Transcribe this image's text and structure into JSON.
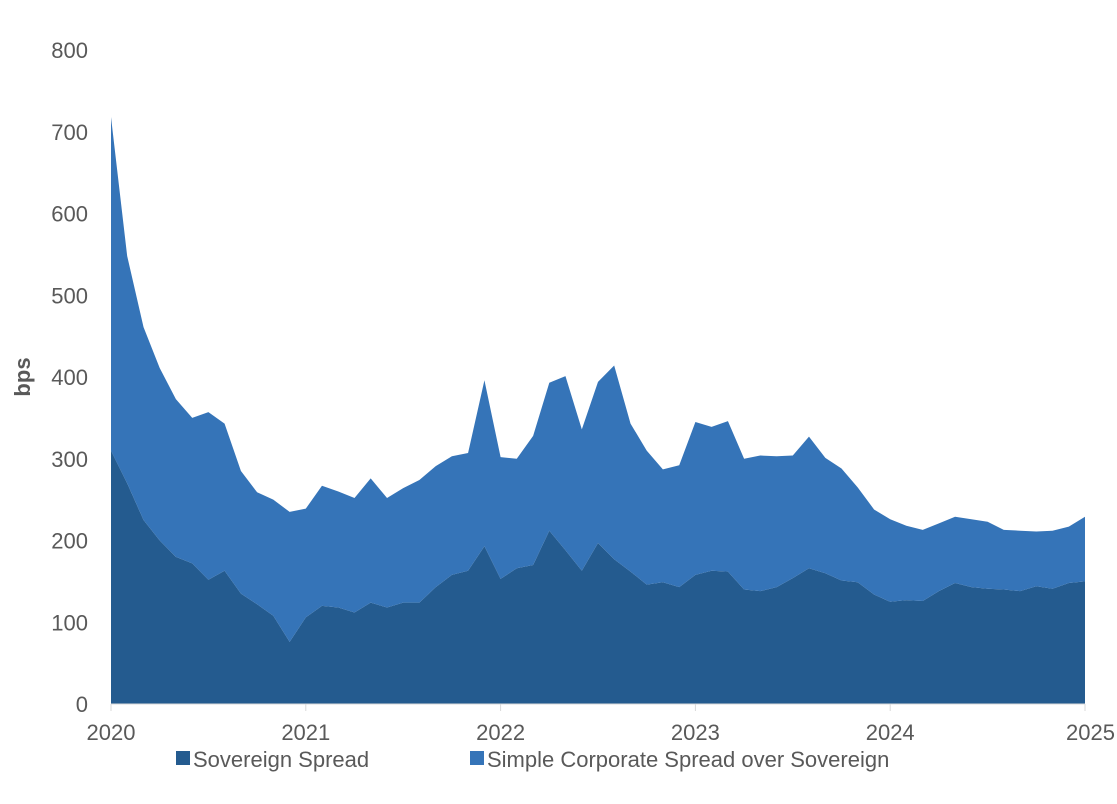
{
  "chart_data": {
    "type": "area",
    "stacked": true,
    "ylabel": "bps",
    "xlabel": "",
    "ylim": [
      0,
      800
    ],
    "yticks": [
      "0",
      "100",
      "200",
      "300",
      "400",
      "500",
      "600",
      "700",
      "800"
    ],
    "xlim": [
      2020,
      2025
    ],
    "xticks": [
      "2020",
      "2021",
      "2022",
      "2023",
      "2024",
      "2025"
    ],
    "grid": false,
    "legend_position": "bottom",
    "x": [
      2020.0,
      2020.083,
      2020.167,
      2020.25,
      2020.333,
      2020.417,
      2020.5,
      2020.583,
      2020.667,
      2020.75,
      2020.833,
      2020.917,
      2021.0,
      2021.083,
      2021.167,
      2021.25,
      2021.333,
      2021.417,
      2021.5,
      2021.583,
      2021.667,
      2021.75,
      2021.833,
      2021.917,
      2022.0,
      2022.083,
      2022.167,
      2022.25,
      2022.333,
      2022.417,
      2022.5,
      2022.583,
      2022.667,
      2022.75,
      2022.833,
      2022.917,
      2023.0,
      2023.083,
      2023.167,
      2023.25,
      2023.333,
      2023.417,
      2023.5,
      2023.583,
      2023.667,
      2023.75,
      2023.833,
      2023.917,
      2024.0,
      2024.083,
      2024.167,
      2024.25,
      2024.333,
      2024.417,
      2024.5,
      2024.583,
      2024.667,
      2024.75,
      2024.833,
      2024.917,
      2025.0
    ],
    "series": [
      {
        "name": "Sovereign Spread",
        "color": "#245b8f",
        "values": [
          310,
          270,
          225,
          200,
          180,
          172,
          152,
          163,
          135,
          122,
          108,
          76,
          106,
          120,
          118,
          112,
          124,
          118,
          124,
          124,
          143,
          158,
          163,
          193,
          153,
          166,
          170,
          212,
          188,
          163,
          197,
          177,
          162,
          146,
          149,
          143,
          158,
          163,
          162,
          140,
          138,
          143,
          154,
          166,
          160,
          151,
          149,
          134,
          125,
          127,
          126,
          138,
          148,
          143,
          141,
          140,
          138,
          144,
          141,
          148,
          150
        ]
      },
      {
        "name": "Simple Corporate Spread over Sovereign",
        "color": "#3574b8",
        "values": [
          408,
          278,
          236,
          211,
          193,
          178,
          205,
          180,
          150,
          137,
          142,
          159,
          133,
          147,
          142,
          140,
          152,
          134,
          140,
          150,
          148,
          145,
          144,
          203,
          149,
          134,
          158,
          181,
          213,
          173,
          197,
          237,
          181,
          164,
          138,
          149,
          187,
          176,
          184,
          160,
          166,
          160,
          150,
          161,
          141,
          137,
          116,
          104,
          101,
          91,
          87,
          83,
          81,
          83,
          82,
          73,
          74,
          67,
          71,
          69,
          79
        ]
      }
    ]
  }
}
